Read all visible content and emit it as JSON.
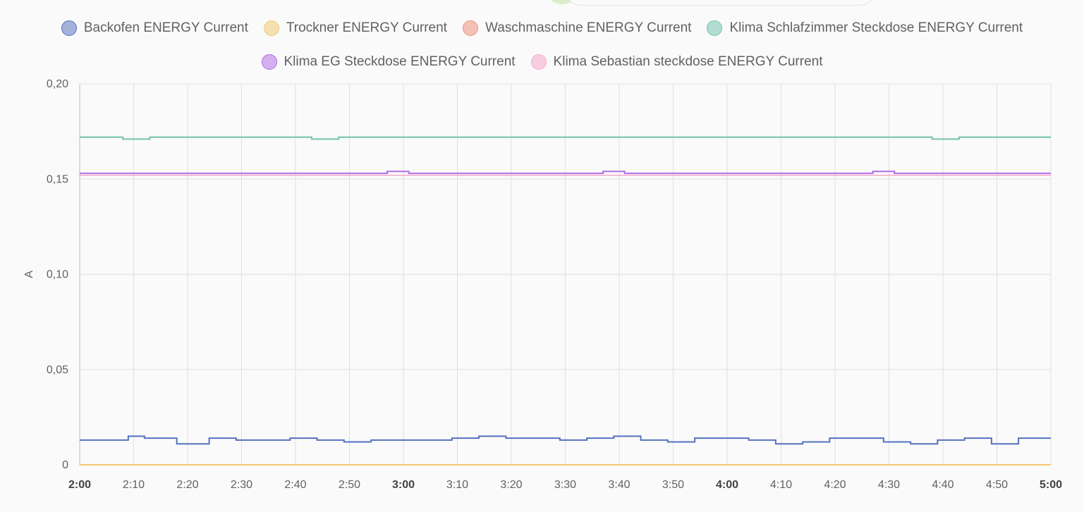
{
  "chart_data": {
    "type": "line",
    "ylabel": "A",
    "ylim": [
      0,
      0.2
    ],
    "yticks": [
      0,
      0.05,
      0.1,
      0.15,
      0.2
    ],
    "ytick_labels": [
      "0",
      "0,05",
      "0,10",
      "0,15",
      "0,20"
    ],
    "x_range": [
      "2:00",
      "5:00"
    ],
    "xtick_labels": [
      "2:00",
      "2:10",
      "2:20",
      "2:30",
      "2:40",
      "2:50",
      "3:00",
      "3:10",
      "3:20",
      "3:30",
      "3:40",
      "3:50",
      "4:00",
      "4:10",
      "4:20",
      "4:30",
      "4:40",
      "4:50",
      "5:00"
    ],
    "bold_ticks": [
      "2:00",
      "3:00",
      "4:00",
      "5:00"
    ],
    "grid": true,
    "legend_position": "top-center",
    "step": true,
    "series": [
      {
        "name": "Backofen ENERGY Current",
        "color": "#5472c0",
        "x": [
          "2:00",
          "2:09",
          "2:12",
          "2:18",
          "2:24",
          "2:29",
          "2:39",
          "2:44",
          "2:49",
          "2:54",
          "3:09",
          "3:14",
          "3:19",
          "3:29",
          "3:34",
          "3:39",
          "3:44",
          "3:49",
          "3:54",
          "4:04",
          "4:09",
          "4:14",
          "4:19",
          "4:29",
          "4:34",
          "4:39",
          "4:44",
          "4:49",
          "4:54",
          "5:00"
        ],
        "y": [
          0.013,
          0.015,
          0.014,
          0.011,
          0.014,
          0.013,
          0.014,
          0.013,
          0.012,
          0.013,
          0.014,
          0.015,
          0.014,
          0.013,
          0.014,
          0.015,
          0.013,
          0.012,
          0.014,
          0.013,
          0.011,
          0.012,
          0.014,
          0.012,
          0.011,
          0.013,
          0.014,
          0.011,
          0.014,
          0.014
        ]
      },
      {
        "name": "Trockner ENERGY Current",
        "color": "#f1c970",
        "x": [
          "2:00",
          "5:00"
        ],
        "y": [
          0,
          0
        ]
      },
      {
        "name": "Waschmaschine ENERGY Current",
        "color": "#ef8f79",
        "x": [],
        "y": []
      },
      {
        "name": "Klima Schlafzimmer Steckdose ENERGY Current",
        "color": "#72c2ad",
        "x": [
          "2:00",
          "2:08",
          "2:13",
          "2:43",
          "2:48",
          "4:38",
          "4:43",
          "5:00"
        ],
        "y": [
          0.172,
          0.171,
          0.172,
          0.171,
          0.172,
          0.171,
          0.172,
          0.172
        ]
      },
      {
        "name": "Klima EG Steckdose ENERGY Current",
        "color": "#b16ce6",
        "x": [
          "2:00",
          "2:57",
          "3:01",
          "3:37",
          "3:41",
          "4:27",
          "4:31",
          "5:00"
        ],
        "y": [
          0.153,
          0.154,
          0.153,
          0.154,
          0.153,
          0.154,
          0.153,
          0.153
        ]
      },
      {
        "name": "Klima Sebastian steckdose ENERGY Current",
        "color": "#f4a7c8",
        "x": [
          "2:00",
          "5:00"
        ],
        "y": [
          0.152,
          0.152
        ]
      }
    ]
  }
}
